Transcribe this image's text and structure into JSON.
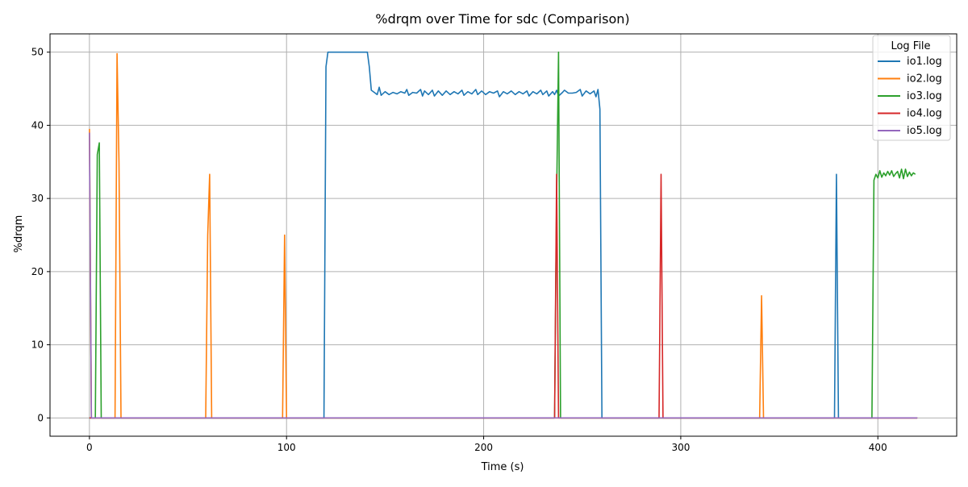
{
  "chart_data": {
    "type": "line",
    "title": "%drqm over Time for sdc (Comparison)",
    "xlabel": "Time (s)",
    "ylabel": "%drqm",
    "xlim": [
      -20,
      440
    ],
    "ylim": [
      -2.5,
      52.5
    ],
    "xticks": [
      0,
      100,
      200,
      300,
      400
    ],
    "yticks": [
      0,
      10,
      20,
      30,
      40,
      50
    ],
    "grid": true,
    "legend": {
      "title": "Log File",
      "position": "upper right"
    },
    "series": [
      {
        "name": "io1.log",
        "color": "#1f77b4",
        "points": [
          [
            0,
            0
          ],
          [
            119,
            0
          ],
          [
            120,
            48
          ],
          [
            121,
            50
          ],
          [
            141,
            50
          ],
          [
            142,
            48
          ],
          [
            143,
            44.8
          ],
          [
            145,
            44.4
          ],
          [
            146,
            44.2
          ],
          [
            147,
            45.2
          ],
          [
            148,
            44.1
          ],
          [
            150,
            44.6
          ],
          [
            152,
            44.2
          ],
          [
            154,
            44.5
          ],
          [
            156,
            44.3
          ],
          [
            158,
            44.6
          ],
          [
            160,
            44.4
          ],
          [
            161,
            44.9
          ],
          [
            162,
            44.1
          ],
          [
            164,
            44.5
          ],
          [
            166,
            44.4
          ],
          [
            168,
            44.9
          ],
          [
            169,
            44.0
          ],
          [
            170,
            44.7
          ],
          [
            172,
            44.2
          ],
          [
            174,
            44.8
          ],
          [
            175,
            44.0
          ],
          [
            177,
            44.7
          ],
          [
            179,
            44.1
          ],
          [
            181,
            44.7
          ],
          [
            183,
            44.2
          ],
          [
            185,
            44.6
          ],
          [
            187,
            44.3
          ],
          [
            189,
            44.8
          ],
          [
            190,
            44.1
          ],
          [
            192,
            44.6
          ],
          [
            194,
            44.3
          ],
          [
            196,
            44.9
          ],
          [
            197,
            44.2
          ],
          [
            199,
            44.7
          ],
          [
            201,
            44.2
          ],
          [
            203,
            44.6
          ],
          [
            205,
            44.4
          ],
          [
            207,
            44.7
          ],
          [
            208,
            43.9
          ],
          [
            210,
            44.6
          ],
          [
            212,
            44.3
          ],
          [
            214,
            44.7
          ],
          [
            216,
            44.2
          ],
          [
            218,
            44.6
          ],
          [
            220,
            44.3
          ],
          [
            222,
            44.7
          ],
          [
            223,
            44.0
          ],
          [
            225,
            44.6
          ],
          [
            227,
            44.3
          ],
          [
            229,
            44.8
          ],
          [
            230,
            44.2
          ],
          [
            232,
            44.7
          ],
          [
            233,
            44.0
          ],
          [
            235,
            44.6
          ],
          [
            236,
            44.2
          ],
          [
            237,
            44.8
          ],
          [
            238,
            44.0
          ],
          [
            240,
            44.5
          ],
          [
            241,
            44.8
          ],
          [
            243,
            44.4
          ],
          [
            245,
            44.4
          ],
          [
            247,
            44.5
          ],
          [
            249,
            44.9
          ],
          [
            250,
            44.0
          ],
          [
            252,
            44.7
          ],
          [
            254,
            44.3
          ],
          [
            256,
            44.7
          ],
          [
            257,
            43.9
          ],
          [
            258,
            44.9
          ],
          [
            259,
            42.2
          ],
          [
            260,
            0
          ],
          [
            378,
            0
          ],
          [
            379,
            33.3
          ],
          [
            380,
            0
          ],
          [
            420,
            0
          ]
        ]
      },
      {
        "name": "io2.log",
        "color": "#ff7f0e",
        "points": [
          [
            0,
            39.5
          ],
          [
            1,
            0
          ],
          [
            13,
            0
          ],
          [
            14,
            49.8
          ],
          [
            15,
            35
          ],
          [
            16,
            0
          ],
          [
            59,
            0
          ],
          [
            60,
            25
          ],
          [
            61,
            33.3
          ],
          [
            62,
            0
          ],
          [
            98,
            0
          ],
          [
            99,
            25
          ],
          [
            100,
            0
          ],
          [
            340,
            0
          ],
          [
            341,
            16.7
          ],
          [
            342,
            0
          ],
          [
            420,
            0
          ]
        ]
      },
      {
        "name": "io3.log",
        "color": "#2ca02c",
        "points": [
          [
            0,
            0
          ],
          [
            3,
            0
          ],
          [
            4,
            36
          ],
          [
            5,
            37.6
          ],
          [
            6,
            0
          ],
          [
            236,
            0
          ],
          [
            237,
            30
          ],
          [
            238,
            50
          ],
          [
            239,
            0
          ],
          [
            397,
            0
          ],
          [
            398,
            32.5
          ],
          [
            399,
            33.3
          ],
          [
            400,
            32.8
          ],
          [
            401,
            33.8
          ],
          [
            402,
            32.9
          ],
          [
            403,
            33.5
          ],
          [
            404,
            33.1
          ],
          [
            405,
            33.7
          ],
          [
            406,
            33.2
          ],
          [
            407,
            33.8
          ],
          [
            408,
            33.0
          ],
          [
            409,
            33.4
          ],
          [
            410,
            33.7
          ],
          [
            411,
            32.8
          ],
          [
            412,
            34.0
          ],
          [
            413,
            32.7
          ],
          [
            414,
            34.0
          ],
          [
            415,
            33.0
          ],
          [
            416,
            33.6
          ],
          [
            417,
            33.1
          ],
          [
            418,
            33.5
          ],
          [
            419,
            33.3
          ]
        ]
      },
      {
        "name": "io4.log",
        "color": "#d62728",
        "points": [
          [
            0,
            0
          ],
          [
            236,
            0
          ],
          [
            237,
            33.3
          ],
          [
            238,
            0
          ],
          [
            289,
            0
          ],
          [
            290,
            33.3
          ],
          [
            291,
            0
          ],
          [
            420,
            0
          ]
        ]
      },
      {
        "name": "io5.log",
        "color": "#9467bd",
        "points": [
          [
            0,
            39
          ],
          [
            1,
            0
          ],
          [
            420,
            0
          ]
        ]
      }
    ]
  }
}
